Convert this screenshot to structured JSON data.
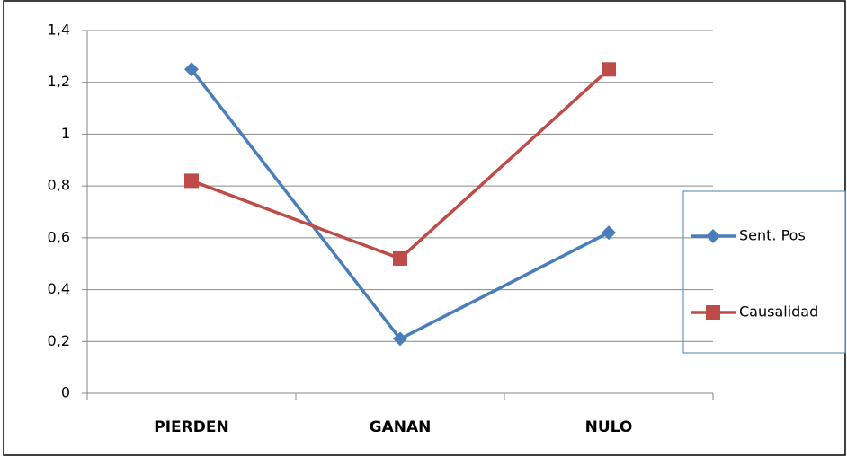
{
  "chart_data": {
    "type": "line",
    "categories": [
      "PIERDEN",
      "GANAN",
      "NULO"
    ],
    "series": [
      {
        "name": "Sent. Pos",
        "color": "#4a7ebb",
        "marker": "diamond",
        "values": [
          1.25,
          0.21,
          0.62
        ]
      },
      {
        "name": "Causalidad",
        "color": "#be4b48",
        "marker": "square",
        "values": [
          0.82,
          0.52,
          1.25
        ]
      }
    ],
    "ylim": [
      0,
      1.4
    ],
    "yticks": [
      0,
      {
        "value": 0.2,
        "label": "0,2"
      },
      {
        "value": 0.4,
        "label": "0,4"
      },
      {
        "value": 0.6,
        "label": "0,6"
      },
      {
        "value": 0.8,
        "label": "0,8"
      },
      1,
      {
        "value": 1.2,
        "label": "1,2"
      },
      {
        "value": 1.4,
        "label": "1,4"
      }
    ],
    "grid": true,
    "legend": "right"
  }
}
